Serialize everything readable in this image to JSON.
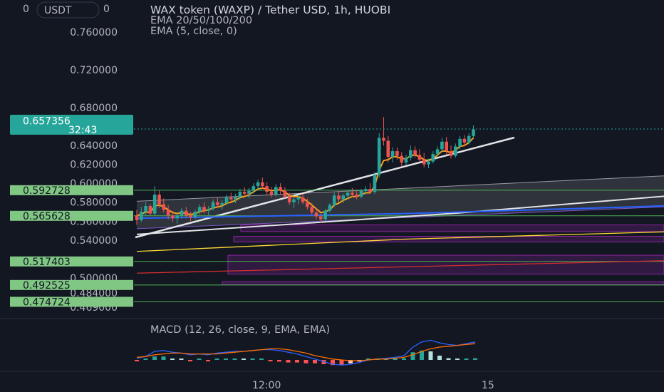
{
  "header": {
    "currency_badge": "USDT",
    "badge_left": "0",
    "badge_right": "0",
    "title": "WAX token (WAXP) / Tether USD, 1h, HUOBI",
    "indicator_1": "EMA 20/50/100/200",
    "indicator_2": "EMA (5, close, 0)"
  },
  "colors": {
    "background": "#131722",
    "bull": "#26a69a",
    "bear": "#ef5350",
    "ema5": "#f7a21b",
    "ema20": "#e1e3e6",
    "ema50": "#2962ff",
    "ema100": "#fdd835",
    "ema200": "#d32f2f",
    "support_line": "#4caf50",
    "zone": "#9c27b0",
    "channel": "#ffffff",
    "macd_line": "#2962ff",
    "signal_line": "#ff6d00",
    "price_label": "#26a69a",
    "level_label": "#81c784"
  },
  "chart_data": {
    "type": "candlestick",
    "ylim": [
      0.46,
      0.79
    ],
    "y_ticks": [
      "0.760000",
      "0.720000",
      "0.680000",
      "0.640000",
      "0.620000",
      "0.600000",
      "0.580000",
      "0.560000",
      "0.540000",
      "0.500000",
      "0.484000",
      "0.469000"
    ],
    "x_ticks": [
      "12:00",
      "15"
    ],
    "current_price": {
      "value": "0.657356",
      "countdown": "32:43"
    },
    "levels": [
      {
        "label": "0.592728",
        "value": 0.592728
      },
      {
        "label": "0.565628",
        "value": 0.565628
      },
      {
        "label": "0.517403",
        "value": 0.517403
      },
      {
        "label": "0.492525",
        "value": 0.492525
      },
      {
        "label": "0.474724",
        "value": 0.474724
      }
    ],
    "zones": [
      {
        "top": 0.556,
        "bottom": 0.549
      },
      {
        "top": 0.544,
        "bottom": 0.538
      },
      {
        "top": 0.524,
        "bottom": 0.504
      },
      {
        "top": 0.496,
        "bottom": 0.493
      }
    ],
    "candles": [
      [
        0.566,
        0.572,
        0.556,
        0.561
      ],
      [
        0.561,
        0.575,
        0.559,
        0.57
      ],
      [
        0.57,
        0.58,
        0.565,
        0.576
      ],
      [
        0.576,
        0.578,
        0.566,
        0.568
      ],
      [
        0.568,
        0.597,
        0.566,
        0.588
      ],
      [
        0.588,
        0.592,
        0.574,
        0.578
      ],
      [
        0.578,
        0.584,
        0.569,
        0.572
      ],
      [
        0.572,
        0.577,
        0.562,
        0.566
      ],
      [
        0.566,
        0.571,
        0.559,
        0.563
      ],
      [
        0.563,
        0.568,
        0.557,
        0.566
      ],
      [
        0.566,
        0.574,
        0.563,
        0.571
      ],
      [
        0.571,
        0.575,
        0.563,
        0.566
      ],
      [
        0.566,
        0.57,
        0.56,
        0.564
      ],
      [
        0.564,
        0.572,
        0.562,
        0.57
      ],
      [
        0.57,
        0.578,
        0.567,
        0.575
      ],
      [
        0.575,
        0.58,
        0.568,
        0.571
      ],
      [
        0.571,
        0.576,
        0.566,
        0.573
      ],
      [
        0.573,
        0.583,
        0.571,
        0.58
      ],
      [
        0.58,
        0.585,
        0.574,
        0.577
      ],
      [
        0.577,
        0.582,
        0.572,
        0.579
      ],
      [
        0.579,
        0.588,
        0.577,
        0.585
      ],
      [
        0.585,
        0.59,
        0.58,
        0.583
      ],
      [
        0.583,
        0.589,
        0.579,
        0.586
      ],
      [
        0.586,
        0.594,
        0.583,
        0.591
      ],
      [
        0.591,
        0.596,
        0.586,
        0.589
      ],
      [
        0.589,
        0.595,
        0.584,
        0.592
      ],
      [
        0.592,
        0.6,
        0.589,
        0.597
      ],
      [
        0.597,
        0.604,
        0.593,
        0.601
      ],
      [
        0.601,
        0.606,
        0.594,
        0.597
      ],
      [
        0.597,
        0.601,
        0.588,
        0.591
      ],
      [
        0.591,
        0.596,
        0.585,
        0.588
      ],
      [
        0.588,
        0.599,
        0.586,
        0.596
      ],
      [
        0.596,
        0.6,
        0.588,
        0.592
      ],
      [
        0.592,
        0.596,
        0.584,
        0.586
      ],
      [
        0.586,
        0.59,
        0.577,
        0.58
      ],
      [
        0.58,
        0.585,
        0.574,
        0.583
      ],
      [
        0.583,
        0.588,
        0.578,
        0.585
      ],
      [
        0.585,
        0.589,
        0.578,
        0.58
      ],
      [
        0.58,
        0.584,
        0.572,
        0.575
      ],
      [
        0.575,
        0.579,
        0.566,
        0.569
      ],
      [
        0.569,
        0.574,
        0.562,
        0.565
      ],
      [
        0.565,
        0.568,
        0.558,
        0.562
      ],
      [
        0.562,
        0.573,
        0.56,
        0.571
      ],
      [
        0.571,
        0.579,
        0.569,
        0.577
      ],
      [
        0.577,
        0.59,
        0.575,
        0.587
      ],
      [
        0.587,
        0.592,
        0.58,
        0.583
      ],
      [
        0.583,
        0.589,
        0.579,
        0.587
      ],
      [
        0.587,
        0.593,
        0.583,
        0.59
      ],
      [
        0.59,
        0.595,
        0.585,
        0.588
      ],
      [
        0.588,
        0.592,
        0.583,
        0.586
      ],
      [
        0.586,
        0.594,
        0.584,
        0.592
      ],
      [
        0.592,
        0.597,
        0.588,
        0.594
      ],
      [
        0.594,
        0.6,
        0.589,
        0.591
      ],
      [
        0.591,
        0.612,
        0.589,
        0.609
      ],
      [
        0.609,
        0.653,
        0.606,
        0.648
      ],
      [
        0.648,
        0.67,
        0.64,
        0.645
      ],
      [
        0.645,
        0.65,
        0.622,
        0.628
      ],
      [
        0.628,
        0.638,
        0.622,
        0.634
      ],
      [
        0.634,
        0.638,
        0.625,
        0.629
      ],
      [
        0.629,
        0.633,
        0.618,
        0.622
      ],
      [
        0.622,
        0.63,
        0.619,
        0.627
      ],
      [
        0.627,
        0.64,
        0.624,
        0.635
      ],
      [
        0.635,
        0.639,
        0.627,
        0.63
      ],
      [
        0.63,
        0.636,
        0.623,
        0.625
      ],
      [
        0.625,
        0.632,
        0.617,
        0.62
      ],
      [
        0.62,
        0.626,
        0.616,
        0.623
      ],
      [
        0.623,
        0.634,
        0.621,
        0.631
      ],
      [
        0.631,
        0.639,
        0.628,
        0.636
      ],
      [
        0.636,
        0.648,
        0.633,
        0.644
      ],
      [
        0.644,
        0.649,
        0.63,
        0.634
      ],
      [
        0.634,
        0.64,
        0.626,
        0.629
      ],
      [
        0.629,
        0.642,
        0.627,
        0.639
      ],
      [
        0.639,
        0.65,
        0.636,
        0.647
      ],
      [
        0.647,
        0.651,
        0.639,
        0.643
      ],
      [
        0.643,
        0.653,
        0.641,
        0.65
      ],
      [
        0.65,
        0.661,
        0.648,
        0.657
      ]
    ],
    "ema5": [
      0.566,
      0.567,
      0.57,
      0.569,
      0.576,
      0.577,
      0.575,
      0.572,
      0.569,
      0.568,
      0.569,
      0.568,
      0.567,
      0.568,
      0.57,
      0.571,
      0.572,
      0.574,
      0.575,
      0.576,
      0.579,
      0.58,
      0.582,
      0.585,
      0.586,
      0.588,
      0.591,
      0.594,
      0.595,
      0.594,
      0.592,
      0.593,
      0.593,
      0.591,
      0.587,
      0.586,
      0.586,
      0.584,
      0.581,
      0.577,
      0.573,
      0.569,
      0.57,
      0.572,
      0.577,
      0.579,
      0.582,
      0.584,
      0.586,
      0.586,
      0.588,
      0.59,
      0.59,
      0.597,
      0.614,
      0.624,
      0.625,
      0.628,
      0.628,
      0.626,
      0.626,
      0.629,
      0.63,
      0.628,
      0.625,
      0.624,
      0.626,
      0.63,
      0.634,
      0.634,
      0.632,
      0.635,
      0.639,
      0.64,
      0.643,
      0.648
    ],
    "ema20": [
      [
        0,
        0.546
      ],
      [
        70,
        0.568
      ],
      [
        140,
        0.595
      ],
      [
        205,
        0.603
      ],
      [
        250,
        0.625
      ],
      [
        280,
        0.635
      ]
    ],
    "ema50": [
      [
        0,
        0.563
      ],
      [
        60,
        0.568
      ],
      [
        110,
        0.575
      ],
      [
        160,
        0.583
      ],
      [
        205,
        0.588
      ],
      [
        235,
        0.6
      ],
      [
        270,
        0.612
      ],
      [
        285,
        0.62
      ]
    ],
    "ema100": [
      [
        0,
        0.528
      ],
      [
        60,
        0.541
      ],
      [
        120,
        0.549
      ],
      [
        170,
        0.556
      ],
      [
        210,
        0.565
      ],
      [
        260,
        0.574
      ],
      [
        290,
        0.585
      ]
    ],
    "ema200": [
      [
        0,
        0.505
      ],
      [
        80,
        0.514
      ],
      [
        160,
        0.523
      ],
      [
        230,
        0.533
      ],
      [
        290,
        0.545
      ]
    ],
    "channel": {
      "upper": [
        [
          0,
          0.581
        ],
        [
          310,
          0.652
        ]
      ],
      "lower": [
        [
          0,
          0.552
        ],
        [
          310,
          0.613
        ]
      ]
    },
    "macd": {
      "macd_line": [
        0.2,
        0.4,
        1.0,
        1.1,
        0.9,
        0.8,
        0.6,
        0.7,
        0.6,
        0.8,
        0.9,
        1.0,
        1.0,
        1.1,
        1.2,
        1.2,
        1.1,
        0.9,
        0.7,
        0.4,
        0.1,
        -0.2,
        -0.5,
        -0.6,
        -0.5,
        -0.3,
        0.0,
        0.1,
        0.2,
        0.3,
        0.5,
        1.5,
        2.1,
        2.3,
        2.0,
        1.8,
        1.7,
        1.9,
        2.1
      ],
      "signal_line": [
        0.3,
        0.4,
        0.6,
        0.7,
        0.8,
        0.8,
        0.7,
        0.7,
        0.7,
        0.7,
        0.8,
        0.9,
        1.0,
        1.1,
        1.2,
        1.3,
        1.3,
        1.2,
        1.0,
        0.8,
        0.5,
        0.3,
        0.1,
        0.0,
        -0.1,
        -0.1,
        0.0,
        0.1,
        0.1,
        0.2,
        0.3,
        0.6,
        1.0,
        1.3,
        1.5,
        1.6,
        1.7,
        1.8,
        1.9
      ],
      "histogram": [
        -0.1,
        0.0,
        0.4,
        0.4,
        0.1,
        0.0,
        -0.1,
        0.0,
        -0.1,
        0.1,
        0.1,
        0.1,
        0.0,
        0.0,
        0.0,
        -0.1,
        -0.2,
        -0.3,
        -0.3,
        -0.4,
        -0.4,
        -0.5,
        -0.6,
        -0.6,
        -0.4,
        -0.2,
        0.0,
        0.0,
        0.1,
        0.1,
        0.2,
        0.9,
        1.1,
        1.0,
        0.5,
        0.2,
        0.0,
        0.1,
        0.2
      ],
      "title": "MACD (12, 26, close, 9, EMA, EMA)"
    }
  }
}
